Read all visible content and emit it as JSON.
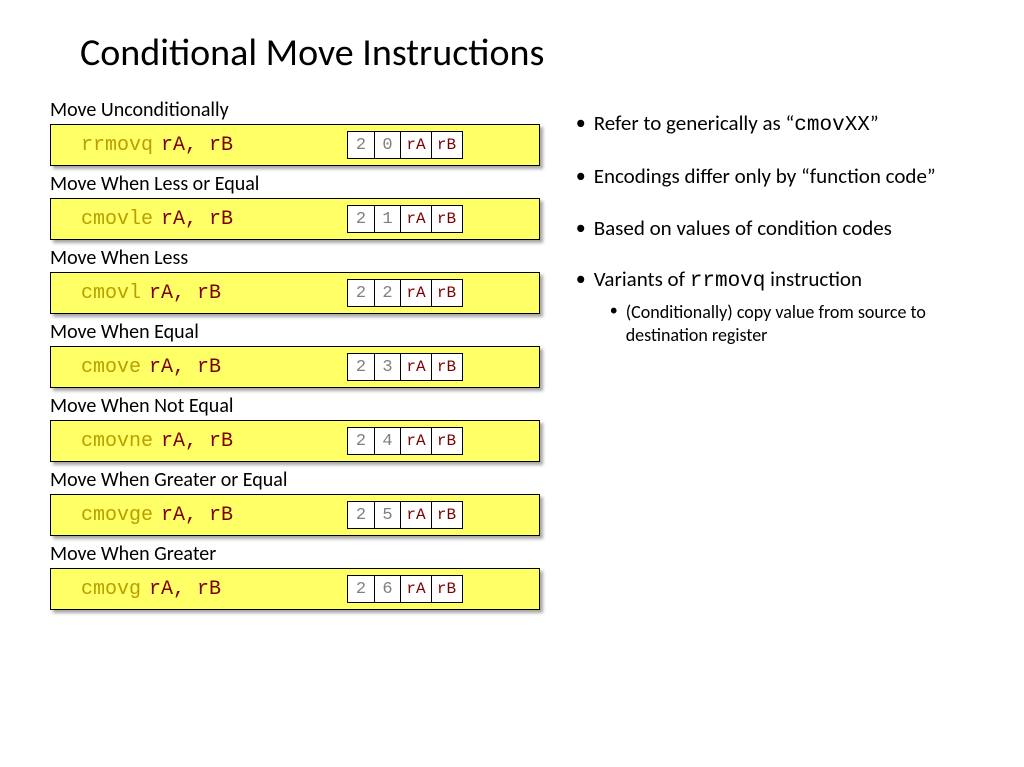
{
  "title": "Conditional Move Instructions",
  "instructions": [
    {
      "label": "Move Unconditionally",
      "mnemonic": "rrmovq",
      "operands": "rA, rB",
      "b0": "2",
      "b1": "0",
      "r0": "rA",
      "r1": "rB"
    },
    {
      "label": "Move When Less or Equal",
      "mnemonic": "cmovle",
      "operands": "rA, rB",
      "b0": "2",
      "b1": "1",
      "r0": "rA",
      "r1": "rB"
    },
    {
      "label": "Move When Less",
      "mnemonic": "cmovl",
      "operands": "rA, rB",
      "b0": "2",
      "b1": "2",
      "r0": "rA",
      "r1": "rB"
    },
    {
      "label": "Move When Equal",
      "mnemonic": "cmove",
      "operands": "rA, rB",
      "b0": "2",
      "b1": "3",
      "r0": "rA",
      "r1": "rB"
    },
    {
      "label": "Move When Not Equal",
      "mnemonic": "cmovne",
      "operands": "rA, rB",
      "b0": "2",
      "b1": "4",
      "r0": "rA",
      "r1": "rB"
    },
    {
      "label": "Move When Greater or Equal",
      "mnemonic": "cmovge",
      "operands": "rA, rB",
      "b0": "2",
      "b1": "5",
      "r0": "rA",
      "r1": "rB"
    },
    {
      "label": "Move When Greater",
      "mnemonic": "cmovg",
      "operands": "rA, rB",
      "b0": "2",
      "b1": "6",
      "r0": "rA",
      "r1": "rB"
    }
  ],
  "bullets": {
    "b0_pre": "Refer to generically as “",
    "b0_code": "cmovXX",
    "b0_post": "”",
    "b1": "Encodings differ only by “function code”",
    "b2": "Based on values of condition codes",
    "b3_pre": "Variants of ",
    "b3_code": "rrmovq",
    "b3_post": " instruction",
    "b3_sub": "(Conditionally) copy value from source to destination register"
  },
  "style": {
    "box_bg": "#ffff66",
    "box_border": "#000000",
    "mnemonic_color": "#b8a000",
    "operand_color": "#7b0000",
    "gray_text": "#808080",
    "reg_text": "#7b0000",
    "background": "#ffffff",
    "title_fontsize": 38,
    "label_fontsize": 20,
    "bullet_fontsize": 21,
    "sub_bullet_fontsize": 18,
    "mono_font": "Courier New"
  }
}
